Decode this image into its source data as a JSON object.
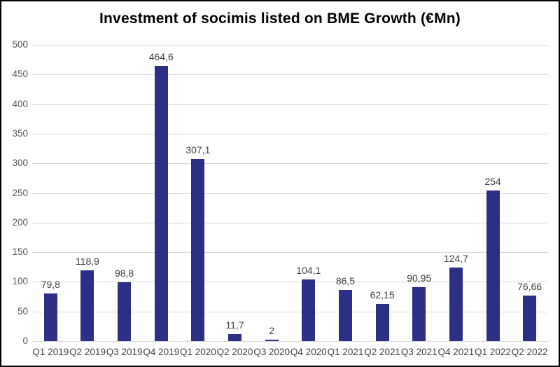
{
  "title": "Investment of socimis listed on BME Growth (€Mn)",
  "colors": {
    "bar": "#2b3086",
    "gridline": "#d9d9d9",
    "y_tick_label": "#595959",
    "x_tick_label": "#404040",
    "data_label": "#404040",
    "title": "#000000",
    "frame_border": "#000000",
    "background": "#ffffff"
  },
  "chart_data": {
    "type": "bar",
    "title": "Investment of socimis listed on BME Growth (€Mn)",
    "categories": [
      "Q1 2019",
      "Q2 2019",
      "Q3 2019",
      "Q4 2019",
      "Q1 2020",
      "Q2 2020",
      "Q3 2020",
      "Q4 2020",
      "Q1 2021",
      "Q2 2021",
      "Q3 2021",
      "Q4 2021",
      "Q1 2022",
      "Q2 2022"
    ],
    "values": [
      79.8,
      118.9,
      98.8,
      464.6,
      307.1,
      11.7,
      2,
      104.1,
      86.5,
      62.15,
      90.95,
      124.7,
      254,
      76.66
    ],
    "value_labels": [
      "79,8",
      "118,9",
      "98,8",
      "464,6",
      "307,1",
      "11,7",
      "2",
      "104,1",
      "86,5",
      "62,15",
      "90,95",
      "124,7",
      "254",
      "76,66"
    ],
    "xlabel": "",
    "ylabel": "",
    "ylim": [
      0,
      500
    ],
    "yticks": [
      0,
      50,
      100,
      150,
      200,
      250,
      300,
      350,
      400,
      450,
      500
    ],
    "grid": "horizontal",
    "legend": "none",
    "bar_color": "#2b3086"
  }
}
